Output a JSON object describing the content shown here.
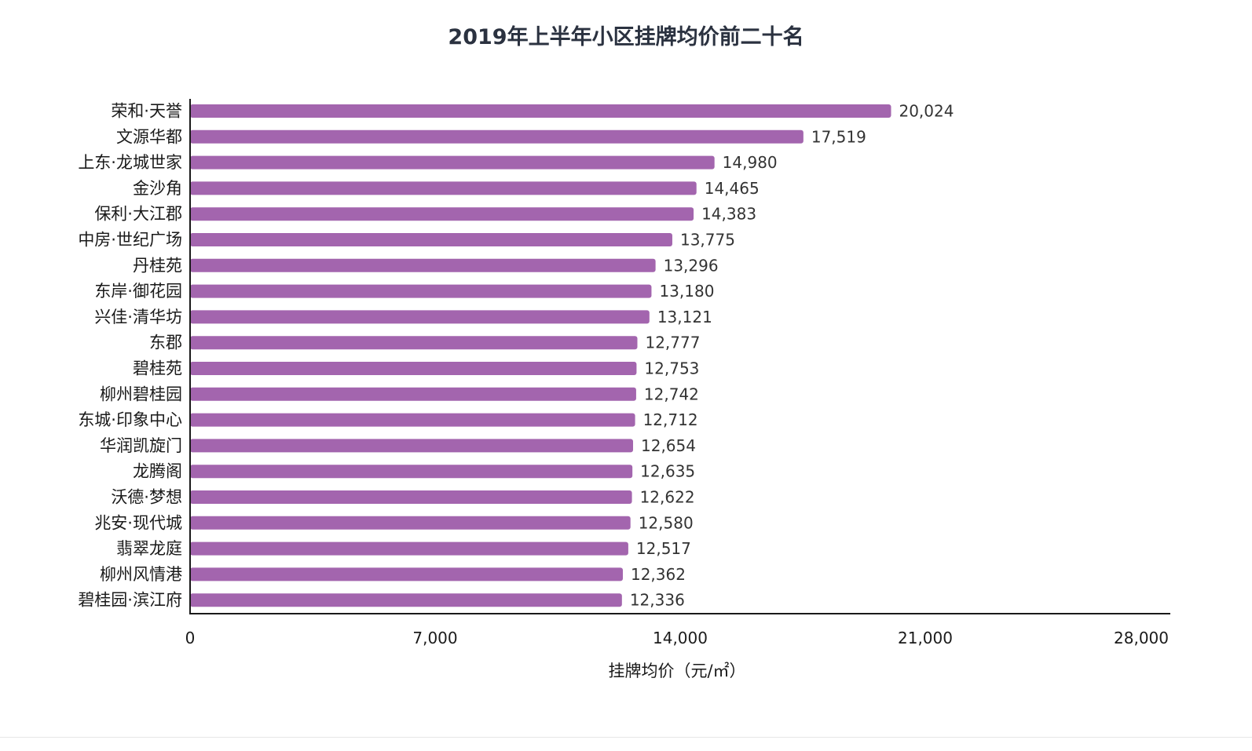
{
  "chart_data": {
    "type": "bar",
    "orientation": "horizontal",
    "title": "2019年上半年小区挂牌均价前二十名",
    "xlabel": "挂牌均价（元/㎡）",
    "ylabel": "",
    "xlim": [
      0,
      28000
    ],
    "ticks": [
      0,
      7000,
      14000,
      21000,
      28000
    ],
    "tick_labels": [
      "0",
      "7,000",
      "14,000",
      "21,000",
      "28,000"
    ],
    "grid": false,
    "bar_color": "#a365ae",
    "categories": [
      "荣和·天誉",
      "文源华都",
      "上东·龙城世家",
      "金沙角",
      "保利·大江郡",
      "中房·世纪广场",
      "丹桂苑",
      "东岸·御花园",
      "兴佳·清华坊",
      "东郡",
      "碧桂苑",
      "柳州碧桂园",
      "东城·印象中心",
      "华润凯旋门",
      "龙腾阁",
      "沃德·梦想",
      "兆安·现代城",
      "翡翠龙庭",
      "柳州风情港",
      "碧桂园·滨江府"
    ],
    "values": [
      20024,
      17519,
      14980,
      14465,
      14383,
      13775,
      13296,
      13180,
      13121,
      12777,
      12753,
      12742,
      12712,
      12654,
      12635,
      12622,
      12580,
      12517,
      12362,
      12336
    ],
    "value_labels": [
      "20,024",
      "17,519",
      "14,980",
      "14,465",
      "14,383",
      "13,775",
      "13,296",
      "13,180",
      "13,121",
      "12,777",
      "12,753",
      "12,742",
      "12,712",
      "12,654",
      "12,635",
      "12,622",
      "12,580",
      "12,517",
      "12,362",
      "12,336"
    ]
  }
}
